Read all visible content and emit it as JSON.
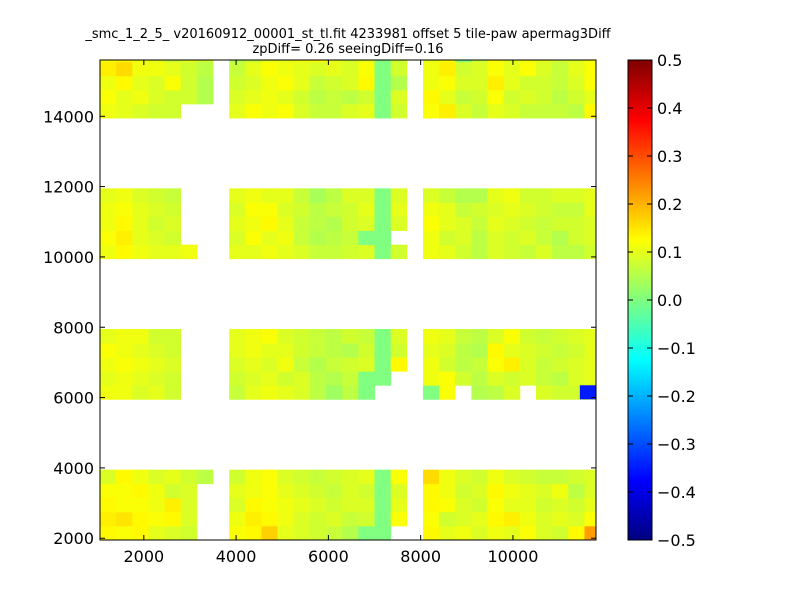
{
  "chart_data": {
    "type": "heatmap",
    "title": {
      "line1": "_smc_1_2_5_ v20160912_00001_st_tl.fit 4233981 offset 5 tile-paw apermag3Diff",
      "line2": "zpDiff= 0.26 seeingDiff=0.16"
    },
    "xlabel": "",
    "ylabel": "",
    "xlim": [
      1050,
      11800
    ],
    "ylim": [
      1950,
      15600
    ],
    "x_ticks": [
      2000,
      4000,
      6000,
      8000,
      10000
    ],
    "x_tick_labels": [
      "2000",
      "4000",
      "6000",
      "8000",
      "10000"
    ],
    "y_ticks": [
      2000,
      4000,
      6000,
      8000,
      10000,
      12000,
      14000
    ],
    "y_tick_labels": [
      "2000",
      "4000",
      "6000",
      "8000",
      "10000",
      "12000",
      "14000"
    ],
    "colorbar": {
      "colormap": "jet",
      "range": [
        -0.5,
        0.5
      ],
      "ticks": [
        0.5,
        0.4,
        0.3,
        0.2,
        0.1,
        0.0,
        -0.1,
        -0.2,
        -0.3,
        -0.4,
        -0.5
      ],
      "tick_labels": [
        "0.5",
        "0.4",
        "0.3",
        "0.2",
        "0.1",
        "0.0",
        "−0.1",
        "−0.2",
        "−0.3",
        "−0.4",
        "−0.5"
      ]
    },
    "cell_size": [
      350,
      400
    ],
    "cell_grid": {
      "x_start": 1050,
      "y_start": 1950,
      "columns": 31,
      "rows": 35,
      "missing_value": null
    },
    "cell_values": [
      [
        0.12,
        0.13,
        0.11,
        0.1,
        0.07,
        0.1,
        0.08,
        0.0,
        0.05,
        0.07,
        0.1,
        0.1,
        0.11,
        0.13,
        0.1,
        0.08,
        0.1,
        0.0,
        0.07,
        0.05,
        0.1,
        0.12,
        0.0,
        0.07,
        0.12,
        0.09,
        0.11,
        0.1,
        0.08,
        0.09,
        0.12
      ],
      [
        0.14,
        0.16,
        0.11,
        0.11,
        0.1,
        0.08,
        0.06,
        0.0,
        0.07,
        0.1,
        0.12,
        0.11,
        0.1,
        0.09,
        0.1,
        0.09,
        0.12,
        0.0,
        0.08,
        0.09,
        0.11,
        0.14,
        0.08,
        0.09,
        0.12,
        0.1,
        0.12,
        0.09,
        0.07,
        0.1,
        0.12
      ],
      [
        0.11,
        0.13,
        0.1,
        0.09,
        0.12,
        0.08,
        0.05,
        0.0,
        0.08,
        0.09,
        0.11,
        0.12,
        0.1,
        0.07,
        0.08,
        0.09,
        0.13,
        0.0,
        0.05,
        0.07,
        0.11,
        0.12,
        0.09,
        0.09,
        0.14,
        0.1,
        0.08,
        0.08,
        0.07,
        0.09,
        0.12
      ],
      [
        0.12,
        0.1,
        0.11,
        0.09,
        0.08,
        0.08,
        0.05,
        0.0,
        0.09,
        0.1,
        0.11,
        0.1,
        0.08,
        0.06,
        0.07,
        0.06,
        0.08,
        0.0,
        0.09,
        0.12,
        0.13,
        0.1,
        0.07,
        0.08,
        0.12,
        0.08,
        0.09,
        0.08,
        0.06,
        0.08,
        0.1
      ],
      [
        0.11,
        0.1,
        0.09,
        0.08,
        0.08,
        0.0,
        0.0,
        0.0,
        0.1,
        0.12,
        0.11,
        0.12,
        0.09,
        0.07,
        0.07,
        0.09,
        0.1,
        0.0,
        0.08,
        0.09,
        0.12,
        0.14,
        0.09,
        0.07,
        0.1,
        0.09,
        0.07,
        0.07,
        0.07,
        0.06,
        0.13
      ],
      [
        0.0,
        0.0,
        0.0,
        0.0,
        0.0,
        0.0,
        0.0,
        0.0,
        0.0,
        0.0,
        0.0,
        0.0,
        0.0,
        0.0,
        0.0,
        0.0,
        0.0,
        0.0,
        0.0,
        0.0,
        0.0,
        0.0,
        0.0,
        0.0,
        0.0,
        0.0,
        0.0,
        0.0,
        0.0,
        0.0,
        0.0
      ],
      [
        0.0,
        0.0,
        0.0,
        0.0,
        0.0,
        0.0,
        0.0,
        0.0,
        0.0,
        0.0,
        0.0,
        0.0,
        0.0,
        0.0,
        0.0,
        0.0,
        0.0,
        0.0,
        0.0,
        0.0,
        0.0,
        0.0,
        0.0,
        0.0,
        0.0,
        0.0,
        0.0,
        0.0,
        0.0,
        0.0,
        0.0
      ],
      [
        0.0,
        0.0,
        0.0,
        0.0,
        0.0,
        0.0,
        0.0,
        0.0,
        0.0,
        0.0,
        0.0,
        0.0,
        0.0,
        0.0,
        0.0,
        0.0,
        0.0,
        0.0,
        0.0,
        0.0,
        0.0,
        0.0,
        0.0,
        0.0,
        0.0,
        0.0,
        0.0,
        0.0,
        0.0,
        0.0,
        0.0
      ],
      [
        0.0,
        0.0,
        0.0,
        0.0,
        0.0,
        0.0,
        0.0,
        0.0,
        0.0,
        0.0,
        0.0,
        0.0,
        0.0,
        0.0,
        0.0,
        0.0,
        0.0,
        0.0,
        0.0,
        0.0,
        0.0,
        0.0,
        0.0,
        0.0,
        0.0,
        0.0,
        0.0,
        0.0,
        0.0,
        0.0,
        0.0
      ],
      [
        0.0,
        0.0,
        0.0,
        0.0,
        0.0,
        0.0,
        0.0,
        0.0,
        0.0,
        0.0,
        0.0,
        0.0,
        0.0,
        0.0,
        0.0,
        0.0,
        0.0,
        0.0,
        0.0,
        0.0,
        0.0,
        0.0,
        0.0,
        0.0,
        0.0,
        0.0,
        0.0,
        0.0,
        0.0,
        0.0,
        0.0
      ],
      [
        0.1,
        0.11,
        0.09,
        0.08,
        0.07,
        0.0,
        0.0,
        0.0,
        0.1,
        0.11,
        0.1,
        0.1,
        0.07,
        0.04,
        0.06,
        0.09,
        0.09,
        0.0,
        0.09,
        0.1,
        0.09,
        0.07,
        0.05,
        0.05,
        0.1,
        0.11,
        0.08,
        0.08,
        0.09,
        0.09,
        0.1
      ],
      [
        0.11,
        0.12,
        0.1,
        0.09,
        0.08,
        0.0,
        0.0,
        0.0,
        0.09,
        0.12,
        0.12,
        0.09,
        0.08,
        0.06,
        0.07,
        0.08,
        0.1,
        0.0,
        0.1,
        0.09,
        0.11,
        0.1,
        0.07,
        0.08,
        0.09,
        0.1,
        0.09,
        0.08,
        0.07,
        0.07,
        0.1
      ],
      [
        0.11,
        0.13,
        0.1,
        0.08,
        0.09,
        0.0,
        0.0,
        0.0,
        0.1,
        0.11,
        0.13,
        0.1,
        0.07,
        0.06,
        0.05,
        0.08,
        0.09,
        0.0,
        0.09,
        0.11,
        0.12,
        0.1,
        0.09,
        0.07,
        0.1,
        0.09,
        0.08,
        0.07,
        0.08,
        0.08,
        0.09
      ],
      [
        0.12,
        0.14,
        0.1,
        0.09,
        0.08,
        0.0,
        0.0,
        0.0,
        0.09,
        0.12,
        0.1,
        0.11,
        0.07,
        0.05,
        0.06,
        0.07,
        0.0,
        0.0,
        0.1,
        0.1,
        0.11,
        0.08,
        0.09,
        0.06,
        0.09,
        0.08,
        0.09,
        0.07,
        0.05,
        0.08,
        0.09
      ],
      [
        0.11,
        0.13,
        0.11,
        0.1,
        0.1,
        0.11,
        0.0,
        0.0,
        0.1,
        0.1,
        0.11,
        0.1,
        0.09,
        0.07,
        0.07,
        0.08,
        0.09,
        0.0,
        0.08,
        0.1,
        0.11,
        0.1,
        0.08,
        0.06,
        0.09,
        0.08,
        0.07,
        0.09,
        0.06,
        0.06,
        0.08
      ],
      [
        0.0,
        0.0,
        0.0,
        0.0,
        0.0,
        0.0,
        0.0,
        0.0,
        0.0,
        0.0,
        0.0,
        0.0,
        0.0,
        0.0,
        0.0,
        0.0,
        0.0,
        0.0,
        0.0,
        0.0,
        0.0,
        0.0,
        0.0,
        0.0,
        0.0,
        0.0,
        0.0,
        0.0,
        0.0,
        0.0,
        0.0
      ],
      [
        0.0,
        0.0,
        0.0,
        0.0,
        0.0,
        0.0,
        0.0,
        0.0,
        0.0,
        0.0,
        0.0,
        0.0,
        0.0,
        0.0,
        0.0,
        0.0,
        0.0,
        0.0,
        0.0,
        0.0,
        0.0,
        0.0,
        0.0,
        0.0,
        0.0,
        0.0,
        0.0,
        0.0,
        0.0,
        0.0,
        0.0
      ],
      [
        0.0,
        0.0,
        0.0,
        0.0,
        0.0,
        0.0,
        0.0,
        0.0,
        0.0,
        0.0,
        0.0,
        0.0,
        0.0,
        0.0,
        0.0,
        0.0,
        0.0,
        0.0,
        0.0,
        0.0,
        0.0,
        0.0,
        0.0,
        0.0,
        0.0,
        0.0,
        0.0,
        0.0,
        0.0,
        0.0,
        0.0
      ],
      [
        0.0,
        0.0,
        0.0,
        0.0,
        0.0,
        0.0,
        0.0,
        0.0,
        0.0,
        0.0,
        0.0,
        0.0,
        0.0,
        0.0,
        0.0,
        0.0,
        0.0,
        0.0,
        0.0,
        0.0,
        0.0,
        0.0,
        0.0,
        0.0,
        0.0,
        0.0,
        0.0,
        0.0,
        0.0,
        0.0,
        0.0
      ],
      [
        0.0,
        0.0,
        0.0,
        0.0,
        0.0,
        0.0,
        0.0,
        0.0,
        0.0,
        0.0,
        0.0,
        0.0,
        0.0,
        0.0,
        0.0,
        0.0,
        0.0,
        0.0,
        0.0,
        0.0,
        0.0,
        0.0,
        0.0,
        0.0,
        0.0,
        0.0,
        0.0,
        0.0,
        0.0,
        0.0,
        0.0
      ],
      [
        0.1,
        0.11,
        0.11,
        0.08,
        0.08,
        0.0,
        0.0,
        0.0,
        0.1,
        0.11,
        0.12,
        0.09,
        0.08,
        0.07,
        0.06,
        0.08,
        0.07,
        0.0,
        0.09,
        0.1,
        0.11,
        0.1,
        0.07,
        0.06,
        0.09,
        0.12,
        0.08,
        0.07,
        0.08,
        0.09,
        0.1
      ],
      [
        0.12,
        0.11,
        0.1,
        0.09,
        0.08,
        0.0,
        0.0,
        0.0,
        0.1,
        0.11,
        0.1,
        0.1,
        0.08,
        0.07,
        0.06,
        0.05,
        0.08,
        0.0,
        0.08,
        0.09,
        0.1,
        0.09,
        0.06,
        0.05,
        0.13,
        0.1,
        0.09,
        0.08,
        0.07,
        0.08,
        0.1
      ],
      [
        0.11,
        0.12,
        0.11,
        0.1,
        0.09,
        0.0,
        0.0,
        0.0,
        0.09,
        0.1,
        0.09,
        0.11,
        0.07,
        0.05,
        0.07,
        0.08,
        0.09,
        0.0,
        0.13,
        0.09,
        0.11,
        0.08,
        0.06,
        0.07,
        0.12,
        0.14,
        0.09,
        0.07,
        0.08,
        0.09,
        0.1
      ],
      [
        0.1,
        0.11,
        0.1,
        0.09,
        0.08,
        0.0,
        0.0,
        0.0,
        0.08,
        0.09,
        0.1,
        0.08,
        0.09,
        0.06,
        0.05,
        0.07,
        0.0,
        0.0,
        0.09,
        0.1,
        0.11,
        0.12,
        0.08,
        0.06,
        0.09,
        0.08,
        0.09,
        0.07,
        0.06,
        0.09,
        0.1
      ],
      [
        0.11,
        0.11,
        0.09,
        0.1,
        0.08,
        0.0,
        0.0,
        0.0,
        0.07,
        0.1,
        0.11,
        0.1,
        0.09,
        0.06,
        0.03,
        0.06,
        0.0,
        0.0,
        0.1,
        0.11,
        0.0,
        0.12,
        0.06,
        0.05,
        0.06,
        0.09,
        0.0,
        0.09,
        0.08,
        0.08,
        0.09
      ],
      [
        0.0,
        0.0,
        0.0,
        0.0,
        0.0,
        0.0,
        0.0,
        0.0,
        0.0,
        0.0,
        0.0,
        0.0,
        0.0,
        0.0,
        0.0,
        0.0,
        0.0,
        0.0,
        0.0,
        0.0,
        0.0,
        0.0,
        0.0,
        0.0,
        0.0,
        0.0,
        0.0,
        0.0,
        0.0,
        0.0,
        0.0
      ],
      [
        0.0,
        0.0,
        0.0,
        0.0,
        0.0,
        0.0,
        0.0,
        0.0,
        0.0,
        0.0,
        0.0,
        0.0,
        0.0,
        0.0,
        0.0,
        0.0,
        0.0,
        0.0,
        0.0,
        0.0,
        0.0,
        0.0,
        0.0,
        0.0,
        0.0,
        0.0,
        0.0,
        0.0,
        0.0,
        0.0,
        0.0
      ],
      [
        0.0,
        0.0,
        0.0,
        0.0,
        0.0,
        0.0,
        0.0,
        0.0,
        0.0,
        0.0,
        0.0,
        0.0,
        0.0,
        0.0,
        0.0,
        0.0,
        0.0,
        0.0,
        0.0,
        0.0,
        0.0,
        0.0,
        0.0,
        0.0,
        0.0,
        0.0,
        0.0,
        0.0,
        0.0,
        0.0,
        0.0
      ],
      [
        0.0,
        0.0,
        0.0,
        0.0,
        0.0,
        0.0,
        0.0,
        0.0,
        0.0,
        0.0,
        0.0,
        0.0,
        0.0,
        0.0,
        0.0,
        0.0,
        0.0,
        0.0,
        0.0,
        0.0,
        0.0,
        0.0,
        0.0,
        0.0,
        0.0,
        0.0,
        0.0,
        0.0,
        0.0,
        0.0,
        0.0
      ],
      [
        0.0,
        0.0,
        0.0,
        0.0,
        0.0,
        0.0,
        0.0,
        0.0,
        0.0,
        0.0,
        0.0,
        0.0,
        0.0,
        0.0,
        0.0,
        0.0,
        0.0,
        0.0,
        0.0,
        0.0,
        0.0,
        0.0,
        0.0,
        0.0,
        0.0,
        0.0,
        0.0,
        0.0,
        0.0,
        0.0,
        0.0
      ],
      [
        0.09,
        0.13,
        0.11,
        0.09,
        0.1,
        0.08,
        0.06,
        0.0,
        0.08,
        0.11,
        0.12,
        0.09,
        0.08,
        0.07,
        0.08,
        0.09,
        0.1,
        0.0,
        0.12,
        0.11,
        0.16,
        0.11,
        0.09,
        0.08,
        0.11,
        0.09,
        0.08,
        0.07,
        0.07,
        0.08,
        0.09
      ],
      [
        0.12,
        0.12,
        0.13,
        0.11,
        0.08,
        0.09,
        0.0,
        0.0,
        0.1,
        0.11,
        0.12,
        0.1,
        0.09,
        0.08,
        0.07,
        0.09,
        0.08,
        0.0,
        0.09,
        0.1,
        0.13,
        0.11,
        0.08,
        0.09,
        0.13,
        0.11,
        0.1,
        0.09,
        0.11,
        0.06,
        0.09
      ],
      [
        0.13,
        0.12,
        0.12,
        0.11,
        0.14,
        0.09,
        0.0,
        0.0,
        0.09,
        0.13,
        0.12,
        0.11,
        0.1,
        0.09,
        0.08,
        0.09,
        0.09,
        0.0,
        0.1,
        0.11,
        0.13,
        0.12,
        0.09,
        0.08,
        0.12,
        0.1,
        0.1,
        0.08,
        0.09,
        0.08,
        0.1
      ],
      [
        0.14,
        0.15,
        0.13,
        0.12,
        0.13,
        0.09,
        0.0,
        0.0,
        0.11,
        0.14,
        0.13,
        0.11,
        0.09,
        0.08,
        0.09,
        0.07,
        0.08,
        0.0,
        0.12,
        0.13,
        0.12,
        0.08,
        0.09,
        0.1,
        0.13,
        0.14,
        0.11,
        0.09,
        0.1,
        0.09,
        0.12
      ],
      [
        0.13,
        0.12,
        0.13,
        0.1,
        0.09,
        0.08,
        0.0,
        0.0,
        0.12,
        0.13,
        0.17,
        0.1,
        0.09,
        0.08,
        0.07,
        0.05,
        0.0,
        0.0,
        0.11,
        0.12,
        0.13,
        0.1,
        0.11,
        0.09,
        0.11,
        0.1,
        0.12,
        0.09,
        0.08,
        0.13,
        0.22
      ]
    ],
    "missing_mask_rows": [
      "0000000100000000000100000000000",
      "0000000100000000000100000000000",
      "0000000100000000000100000000000",
      "0000000100000000000100000000000",
      "0000011100000000000100000000000",
      "1111111111111111111111111111111",
      "1111111111111111111111111111111",
      "1111111111111111111111111111111",
      "1111111111111111111111111111111",
      "1111111111111111111111111111111",
      "0000011100000000000100000000000",
      "0000011100000000000100000000000",
      "0000011100000000000100000000000",
      "0000011100000000001100000000000",
      "0000001100000000000100000000000",
      "1111111111111111111111111111111",
      "1111111111111111111111111111111",
      "1111111111111111111111111111111",
      "1111111111111111111111111111111",
      "1111111111111111111111111111111",
      "0000011100000000000100000000000",
      "0000011100000000000100000000000",
      "0000011100000000000100000000000",
      "0000011100000000001100000000000",
      "0000011100000000011100100010000",
      "1111111111111111111111111111111",
      "1111111111111111111111111111111",
      "1111111111111111111111111111111",
      "1111111111111111111111111111111",
      "1111111111111111111111111111111",
      "0000000100000000000100000000000",
      "0000001100000000000100000000000",
      "0000001100000000000100000000000",
      "0000001100000000000100000000000",
      "0000001100000000001100000000000"
    ],
    "special_cells": [
      {
        "x": 11450,
        "y": 5950,
        "value": -0.35
      }
    ]
  },
  "colors": {
    "background": "#ffffff",
    "axis": "#000000",
    "colormap_stops": [
      "#00007f",
      "#0000ff",
      "#007fff",
      "#00ffff",
      "#7fff7f",
      "#ffff00",
      "#ff7f00",
      "#ff0000",
      "#7f0000"
    ]
  }
}
